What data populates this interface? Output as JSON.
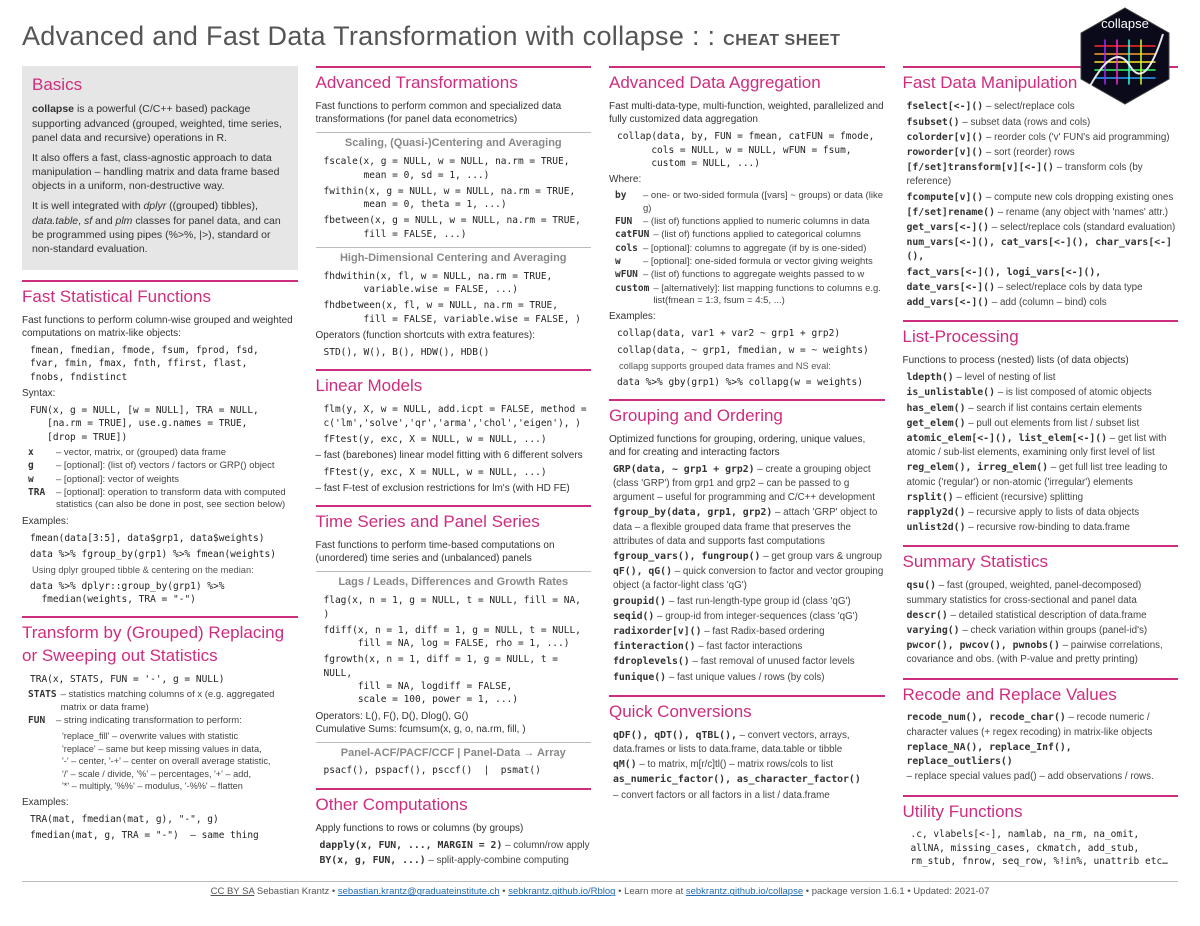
{
  "title_main": "Advanced and Fast Data Transformation with collapse : : ",
  "title_sub": "CHEAT SHEET",
  "logo_label": "collapse",
  "colors": {
    "accent": "#ce2d7f",
    "text": "#333333",
    "muted": "#888888",
    "rule": "#bbbbbb",
    "basics_bg": "#e6e6e6",
    "link": "#226bb3",
    "background": "#ffffff"
  },
  "typography": {
    "body_pt": 10.5,
    "h1_pt": 27,
    "h2_pt": 17,
    "h3_pt": 11,
    "code_pt": 9.5,
    "footer_pt": 9.5
  },
  "columns": [
    {
      "sections": [
        {
          "heading": "Basics",
          "boxed": true,
          "paragraphs": [
            "<b>collapse</b> is a powerful (C/C++ based) package supporting advanced (grouped, weighted, time series, panel data and recursive) operations in R.",
            "It also offers a fast, class-agnostic approach to data manipulation – handling matrix and data frame based objects in a uniform, non-destructive way.",
            "It is well integrated with <i>dplyr</i> ((grouped) tibbles), <i>data.table</i>, <i>sf</i> and <i>plm</i> classes for panel data, and can be programmed using pipes (%>%, |>), standard or non-standard evaluation."
          ]
        },
        {
          "heading": "Fast Statistical Functions",
          "paragraphs": [
            "Fast functions to perform column-wise grouped and weighted computations on matrix-like objects:"
          ],
          "code": [
            "fmean, fmedian, fmode, fsum, fprod, fsd,\nfvar, fmin, fmax, fnth, ffirst, flast,\nfnobs, fndistinct"
          ],
          "label_syntax": "Syntax:",
          "code2": [
            "FUN(x, g = NULL, [w = NULL], TRA = NULL,\n   [na.rm = TRUE], use.g.names = TRUE,\n   [drop = TRUE])"
          ],
          "defs": [
            {
              "term": "x",
              "def": "– vector, matrix, or (grouped) data frame"
            },
            {
              "term": "g",
              "def": "– [optional]: (list of) vectors / factors or GRP() object"
            },
            {
              "term": "w",
              "def": "– [optional]: vector of weights"
            },
            {
              "term": "TRA",
              "def": "– [optional]: operation to transform data with computed statistics (can also be done in post, see section below)"
            }
          ],
          "label_examples": "Examples:",
          "code3": [
            "fmean(data[3:5], data$grp1, data$weights)",
            "data %>% fgroup_by(grp1) %>% fmean(weights)"
          ],
          "note": "Using dplyr grouped tibble & centering on the median:",
          "code4": [
            "data %>% dplyr::group_by(grp1) %>%\n  fmedian(weights, TRA = \"-\")"
          ]
        },
        {
          "heading": "Transform by (Grouped) Replacing or Sweeping out Statistics",
          "code": [
            "TRA(x, STATS, FUN = '-', g = NULL)"
          ],
          "defs": [
            {
              "term": "STATS",
              "def": "– statistics matching columns of x (e.g. aggregated matrix or data frame)"
            },
            {
              "term": "FUN",
              "def": "– string indicating transformation to perform:"
            }
          ],
          "funlist": [
            "'replace_fill' – overwrite values with statistic",
            "'replace' – same but keep missing values in data,",
            "'-' – center, '-+' – center on overall average statistic,",
            "'/' – scale / divide, '%' – percentages, '+' – add,",
            "'*' – multiply, '%%' – modulus, '-%%' – flatten"
          ],
          "label_examples": "Examples:",
          "code3": [
            "TRA(mat, fmedian(mat, g), \"-\", g)",
            "fmedian(mat, g, TRA = \"-\")  – same thing"
          ]
        }
      ]
    },
    {
      "sections": [
        {
          "heading": "Advanced Transformations",
          "paragraphs": [
            "Fast functions to perform common and specialized data transformations (for panel data econometrics)"
          ],
          "subs": [
            {
              "title": "Scaling, (Quasi-)Centering and Averaging",
              "code": [
                "fscale(x, g = NULL, w = NULL, na.rm = TRUE,\n       mean = 0, sd = 1, ...)",
                "fwithin(x, g = NULL, w = NULL, na.rm = TRUE,\n       mean = 0, theta = 1, ...)",
                "fbetween(x, g = NULL, w = NULL, na.rm = TRUE,\n       fill = FALSE, ...)"
              ]
            },
            {
              "title": "High-Dimensional Centering and Averaging",
              "code": [
                "fhdwithin(x, fl, w = NULL, na.rm = TRUE,\n       variable.wise = FALSE, ...)",
                "fhdbetween(x, fl, w = NULL, na.rm = TRUE,\n       fill = FALSE, variable.wise = FALSE, )"
              ],
              "after": "Operators (function shortcuts with extra features):",
              "code_after": [
                "STD(), W(), B(), HDW(), HDB()"
              ]
            }
          ]
        },
        {
          "heading": "Linear Models",
          "code": [
            "flm(y, X, w = NULL, add.icpt = FALSE, method =\nc('lm','solve','qr','arma','chol','eigen'), )"
          ],
          "after": "– fast (barebones) linear model fitting with 6 different solvers",
          "code2": [
            "fFtest(y, exc, X = NULL, w = NULL, ...)"
          ],
          "after2": "– fast F-test of exclusion restrictions for lm's (with HD FE)"
        },
        {
          "heading": "Time Series and Panel Series",
          "paragraphs": [
            "Fast functions to perform time-based computations on (unordered) time series and (unbalanced) panels"
          ],
          "subs": [
            {
              "title": "Lags / Leads, Differences and Growth Rates",
              "code": [
                "flag(x, n = 1, g = NULL, t = NULL, fill = NA, )",
                "fdiff(x, n = 1, diff = 1, g = NULL, t = NULL,\n      fill = NA, log = FALSE, rho = 1, ...)",
                "fgrowth(x, n = 1, diff = 1, g = NULL, t = NULL,\n      fill = NA, logdiff = FALSE,\n      scale = 100, power = 1, ...)"
              ],
              "after": "Operators: L(), F(), D(), Dlog(), G()\nCumulative Sums: fcumsum(x, g, o, na.rm, fill, )"
            },
            {
              "title": "Panel-ACF/PACF/CCF  |  Panel-Data → Array",
              "code": [
                "psacf(), pspacf(), psccf()  |  psmat()"
              ]
            }
          ]
        },
        {
          "heading": "Other Computations",
          "paragraphs": [
            "Apply functions to rows or columns (by groups)"
          ],
          "inline": [
            {
              "fn": "dapply(x, FUN, ..., MARGIN = 2)",
              "d": " – column/row apply"
            },
            {
              "fn": "BY(x, g, FUN, ...)",
              "d": " – split-apply-combine computing"
            }
          ]
        }
      ]
    },
    {
      "sections": [
        {
          "heading": "Advanced Data Aggregation",
          "paragraphs": [
            "Fast multi-data-type, multi-function, weighted, parallelized and fully customized data aggregation"
          ],
          "code": [
            "collap(data, by, FUN = fmean, catFUN = fmode,\n      cols = NULL, w = NULL, wFUN = fsum,\n      custom = NULL, ...)"
          ],
          "label_where": "Where:",
          "defs": [
            {
              "term": "by",
              "def": "– one- or two-sided formula ([vars] ~ groups) or data (like g)"
            },
            {
              "term": "FUN",
              "def": "– (list of) functions applied to numeric columns in data"
            },
            {
              "term": "catFUN",
              "def": "– (list of) functions applied to categorical columns"
            },
            {
              "term": "cols",
              "def": "– [optional]: columns to aggregate (if by is one-sided)"
            },
            {
              "term": "w",
              "def": "– [optional]: one-sided formula or vector giving weights"
            },
            {
              "term": "wFUN",
              "def": "– (list of) functions to aggregate weights passed to w"
            },
            {
              "term": "custom",
              "def": "– [alternatively]: list mapping functions to columns e.g. list(fmean = 1:3, fsum = 4:5, ...)"
            }
          ],
          "label_examples": "Examples:",
          "code3": [
            "collap(data, var1 + var2 ~ grp1 + grp2)",
            "collap(data, ~ grp1, fmedian, w = ~ weights)"
          ],
          "note": "collapg supports grouped data frames and NS eval:",
          "code4": [
            "data %>% gby(grp1) %>% collapg(w = weights)"
          ]
        },
        {
          "heading": "Grouping and Ordering",
          "paragraphs": [
            "Optimized functions for grouping, ordering, unique values, and for creating and interacting factors"
          ],
          "inline": [
            {
              "fn": "GRP(data, ~ grp1 + grp2)",
              "d": " – create a grouping object (class 'GRP') from grp1 and grp2 – can be passed to g argument – useful for programming and C/C++ development"
            },
            {
              "fn": "fgroup_by(data, grp1, grp2)",
              "d": " – attach 'GRP' object to data – a flexible grouped data frame that preserves the attributes of data and supports fast computations"
            },
            {
              "fn": "fgroup_vars(), fungroup()",
              "d": " – get group vars & ungroup"
            },
            {
              "fn": "qF(), qG()",
              "d": " – quick conversion to factor and vector grouping object (a factor-light class 'qG')"
            },
            {
              "fn": "groupid()",
              "d": " – fast run-length-type group id (class 'qG')"
            },
            {
              "fn": "seqid()",
              "d": " – group-id from integer-sequences (class 'qG')"
            },
            {
              "fn": "radixorder[v]()",
              "d": " – fast Radix-based ordering"
            },
            {
              "fn": "finteraction()",
              "d": " – fast factor interactions"
            },
            {
              "fn": "fdroplevels()",
              "d": " – fast removal of unused factor levels"
            },
            {
              "fn": "funique()",
              "d": " – fast unique values / rows (by cols)"
            }
          ]
        },
        {
          "heading": "Quick Conversions",
          "inline": [
            {
              "fn": "qDF(), qDT(), qTBL(),",
              "d": " – convert vectors, arrays, data.frames or lists to data.frame, data.table or tibble"
            },
            {
              "fn": "qM()",
              "d": " – to matrix,  m[r/c]tl() – matrix rows/cols to list"
            },
            {
              "fn": "as_numeric_factor(), as_character_factor()",
              "d": ""
            },
            {
              "fn": "",
              "d": "– convert factors or all factors in a list / data.frame"
            }
          ]
        }
      ]
    },
    {
      "sections": [
        {
          "heading": "Fast Data Manipulation",
          "inline": [
            {
              "fn": "fselect[<-]()",
              "d": " – select/replace cols"
            },
            {
              "fn": "fsubset()",
              "d": " – subset data (rows and cols)"
            },
            {
              "fn": "colorder[v]()",
              "d": " – reorder cols ('v' FUN's aid programming)"
            },
            {
              "fn": "roworder[v]()",
              "d": " – sort (reorder) rows"
            },
            {
              "fn": "[f/set]transform[v][<-]()",
              "d": " – transform cols (by reference)"
            },
            {
              "fn": "fcompute[v]()",
              "d": " – compute new cols dropping existing ones"
            },
            {
              "fn": "[f/set]rename()",
              "d": " – rename (any object with 'names' attr.)"
            },
            {
              "fn": "get_vars[<-]()",
              "d": " – select/replace cols (standard evaluation)"
            },
            {
              "fn": "num_vars[<-](), cat_vars[<-](), char_vars[<-](),",
              "d": ""
            },
            {
              "fn": "fact_vars[<-](), logi_vars[<-](),",
              "d": ""
            },
            {
              "fn": "date_vars[<-]()",
              "d": " – select/replace cols by data type"
            },
            {
              "fn": "add_vars[<-]()",
              "d": " – add (column – bind) cols"
            }
          ]
        },
        {
          "heading": "List-Processing",
          "paragraphs": [
            "Functions to process (nested) lists (of data objects)"
          ],
          "inline": [
            {
              "fn": "ldepth()",
              "d": " – level of nesting of list"
            },
            {
              "fn": "is_unlistable()",
              "d": " – is list composed of atomic objects"
            },
            {
              "fn": "has_elem()",
              "d": " – search if list contains certain elements"
            },
            {
              "fn": "get_elem()",
              "d": " – pull out elements from list / subset list"
            },
            {
              "fn": "atomic_elem[<-](), list_elem[<-]()",
              "d": " – get list with atomic / sub-list elements, examining only first level of list"
            },
            {
              "fn": "reg_elem(), irreg_elem()",
              "d": " – get full list tree leading to atomic ('regular') or non-atomic ('irregular') elements"
            },
            {
              "fn": "rsplit()",
              "d": " – efficient (recursive) splitting"
            },
            {
              "fn": "rapply2d()",
              "d": " – recursive apply to lists of data objects"
            },
            {
              "fn": "unlist2d()",
              "d": " – recursive row-binding to data.frame"
            }
          ]
        },
        {
          "heading": "Summary Statistics",
          "inline": [
            {
              "fn": "qsu()",
              "d": " – fast (grouped, weighted, panel-decomposed) summary statistics for cross-sectional and panel data"
            },
            {
              "fn": "descr()",
              "d": " – detailed statistical description of data.frame"
            },
            {
              "fn": "varying()",
              "d": " – check variation within groups (panel-id's)"
            },
            {
              "fn": "pwcor(), pwcov(), pwnobs()",
              "d": " – pairwise correlations, covariance and obs. (with P-value and pretty printing)"
            }
          ]
        },
        {
          "heading": "Recode and Replace Values",
          "inline": [
            {
              "fn": "recode_num(), recode_char()",
              "d": " – recode numeric / character values (+ regex recoding) in matrix-like objects"
            },
            {
              "fn": "replace_NA(), replace_Inf(), replace_outliers()",
              "d": ""
            },
            {
              "fn": "",
              "d": "– replace special values   pad() – add observations / rows."
            }
          ]
        },
        {
          "heading": "Utility Functions",
          "code": [
            ".c, vlabels[<-], namlab, na_rm, na_omit,\nallNA, missing_cases, ckmatch, add_stub,\nrm_stub, fnrow, seq_row, %!in%, unattrib etc…"
          ]
        }
      ]
    }
  ],
  "footer": {
    "license": "CC BY SA",
    "author": "Sebastian Krantz",
    "email": "sebastian.krantz@graduateinstitute.ch",
    "blog": "sebkrantz.github.io/Rblog",
    "more_label": "Learn more at",
    "more_url": "sebkrantz.github.io/collapse",
    "version_label": "package version",
    "version": "1.6.1",
    "updated_label": "Updated:",
    "updated": "2021-07"
  }
}
